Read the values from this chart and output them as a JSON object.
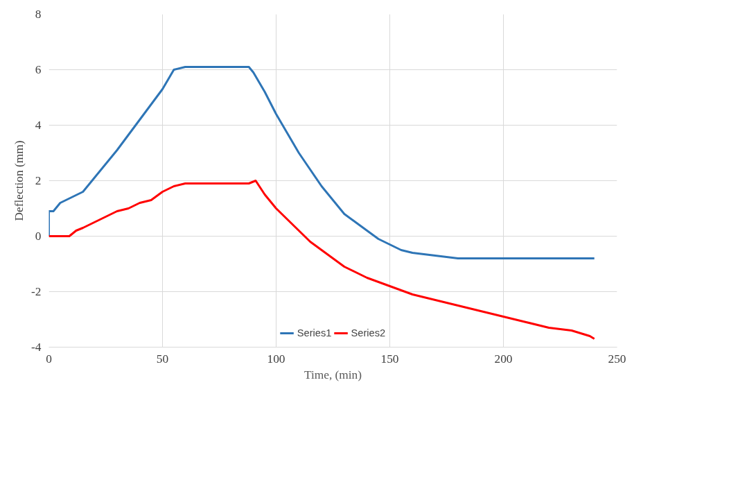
{
  "chart_data": {
    "type": "line",
    "xlabel": "Time, (min)",
    "ylabel": "Deflection (mm)",
    "xlim": [
      0,
      250
    ],
    "xticks": [
      0,
      50,
      100,
      150,
      200,
      250
    ],
    "ylim": [
      -4,
      8
    ],
    "yticks": [
      -4,
      -2,
      0,
      2,
      4,
      6,
      8
    ],
    "grid": true,
    "legend": "bottom",
    "marker": "none",
    "line_style": "solid",
    "series": [
      {
        "name": "Series1",
        "color": "#2e75b6",
        "x": [
          0,
          0,
          2,
          5,
          10,
          15,
          20,
          30,
          40,
          50,
          55,
          60,
          70,
          80,
          88,
          90,
          95,
          100,
          105,
          110,
          115,
          120,
          125,
          130,
          135,
          140,
          145,
          150,
          155,
          160,
          170,
          180,
          200,
          220,
          240
        ],
        "values": [
          0,
          0.9,
          0.9,
          1.2,
          1.4,
          1.6,
          2.1,
          3.1,
          4.2,
          5.3,
          6.0,
          6.1,
          6.1,
          6.1,
          6.1,
          5.9,
          5.2,
          4.4,
          3.7,
          3.0,
          2.4,
          1.8,
          1.3,
          0.8,
          0.5,
          0.2,
          -0.1,
          -0.3,
          -0.5,
          -0.6,
          -0.7,
          -0.8,
          -0.8,
          -0.8,
          -0.8
        ]
      },
      {
        "name": "Series2",
        "color": "#ff0000",
        "x": [
          0,
          5,
          9,
          12,
          15,
          20,
          25,
          30,
          35,
          40,
          45,
          50,
          55,
          60,
          62,
          70,
          80,
          88,
          91,
          95,
          100,
          105,
          110,
          115,
          120,
          125,
          130,
          140,
          150,
          160,
          170,
          180,
          190,
          200,
          210,
          220,
          230,
          238,
          240
        ],
        "values": [
          0,
          0,
          0,
          0.2,
          0.3,
          0.5,
          0.7,
          0.9,
          1.0,
          1.2,
          1.3,
          1.6,
          1.8,
          1.9,
          1.9,
          1.9,
          1.9,
          1.9,
          2.0,
          1.5,
          1.0,
          0.6,
          0.2,
          -0.2,
          -0.5,
          -0.8,
          -1.1,
          -1.5,
          -1.8,
          -2.1,
          -2.3,
          -2.5,
          -2.7,
          -2.9,
          -3.1,
          -3.3,
          -3.4,
          -3.6,
          -3.7
        ]
      }
    ]
  }
}
